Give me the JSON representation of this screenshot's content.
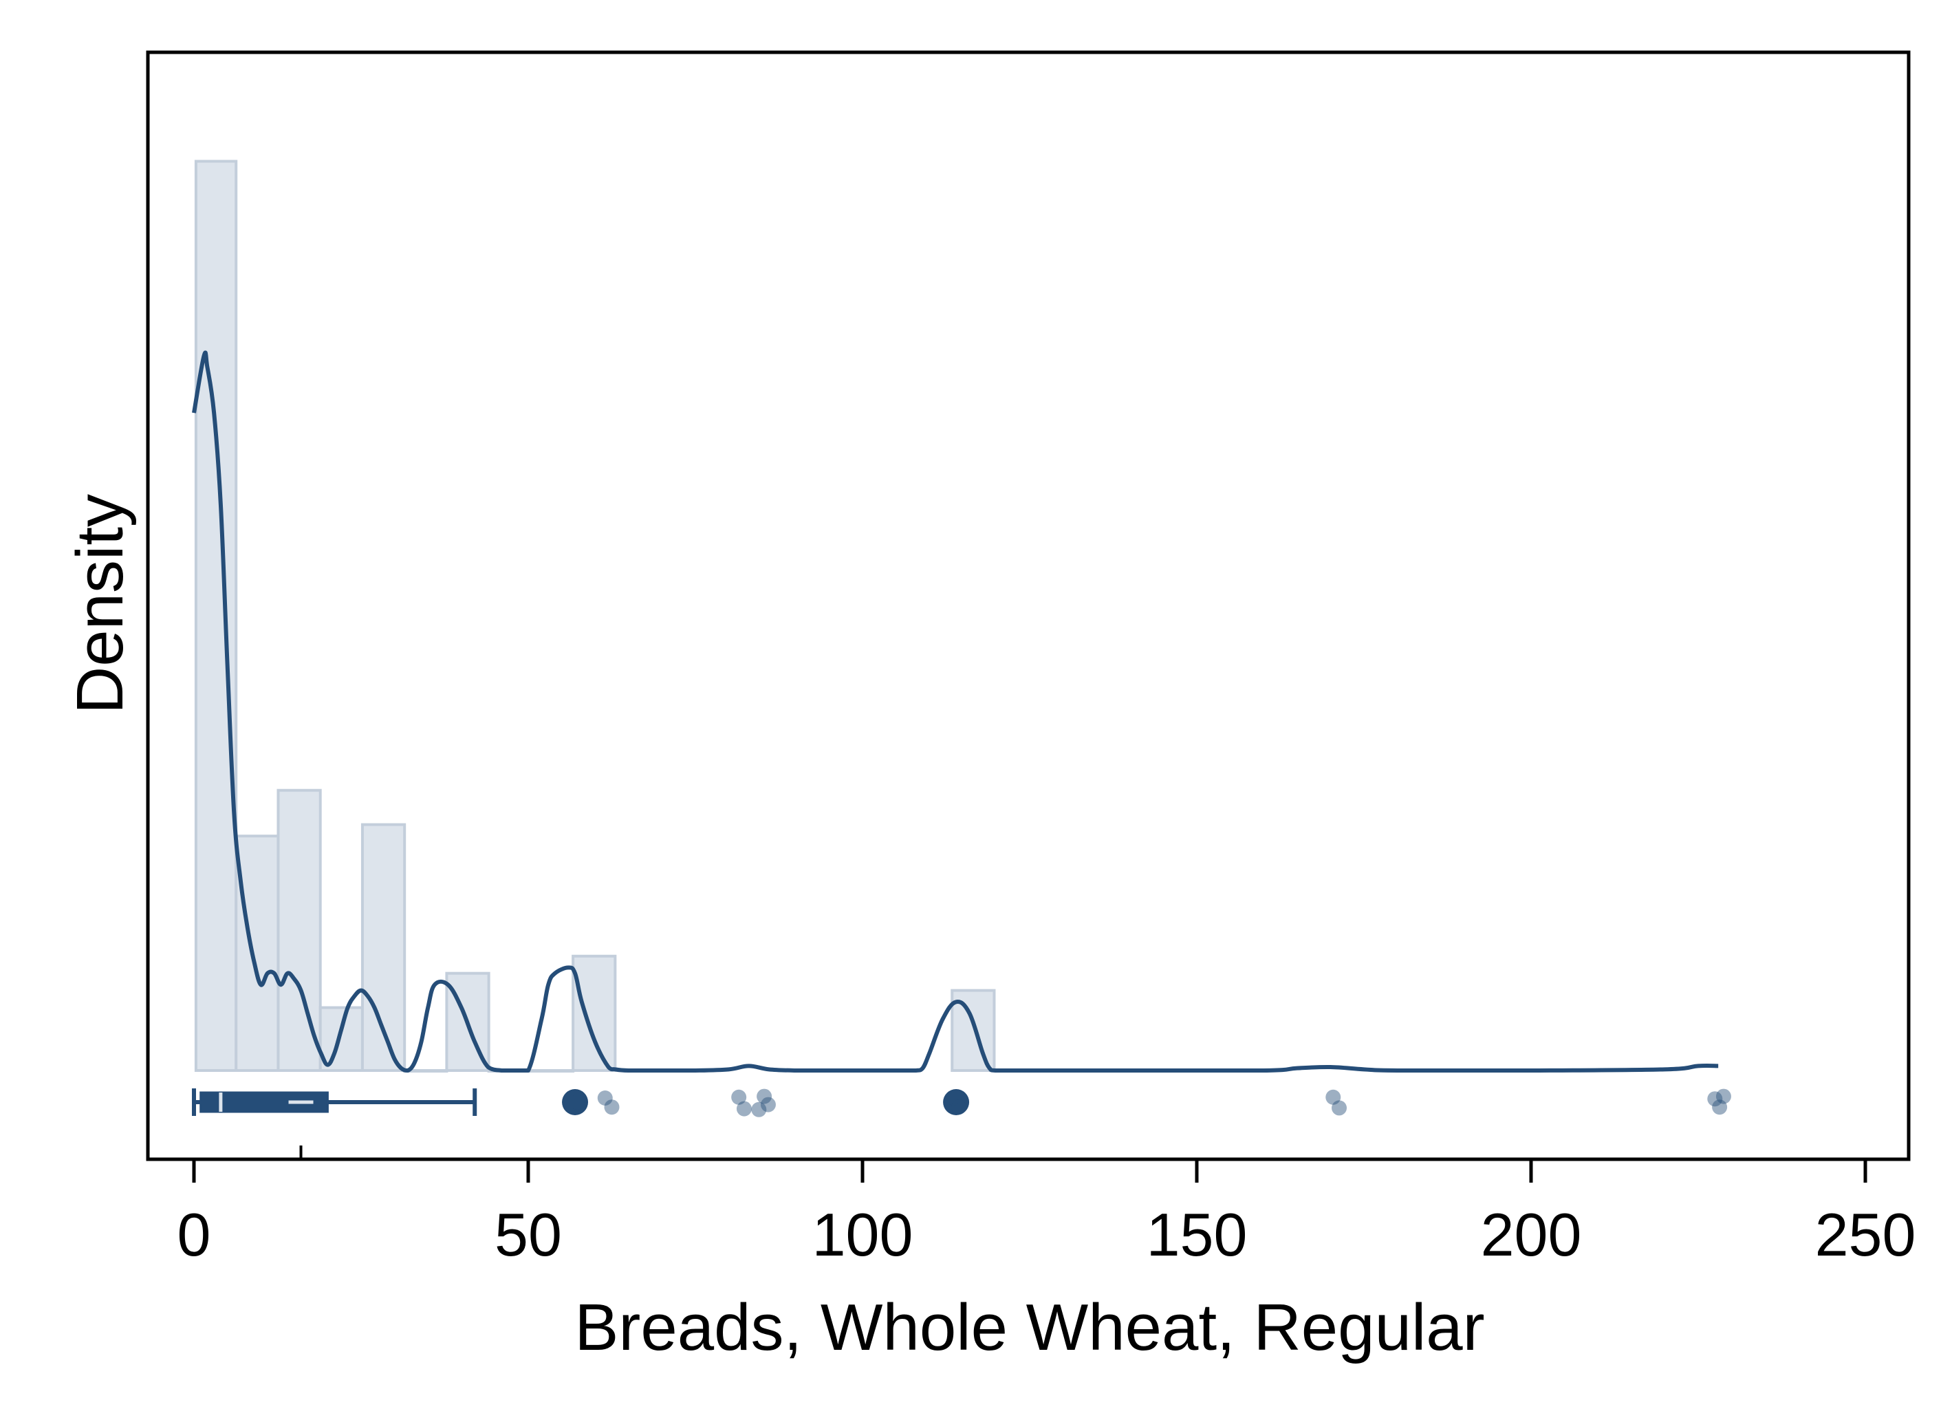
{
  "chart_data": {
    "type": "histogram",
    "title": "",
    "xlabel": "Breads, Whole Wheat, Regular",
    "ylabel": "Density",
    "xlim": [
      -7,
      257
    ],
    "xticks": [
      0,
      50,
      100,
      150,
      200,
      250
    ],
    "xtick_labels": [
      "0",
      "50",
      "100",
      "150",
      "200",
      "250"
    ],
    "yticks_shown": false,
    "density_max": 0.085,
    "grid": false,
    "legend": "none",
    "colors": {
      "bar_fill": "#dde4ec",
      "bar_edge": "#c3cedb",
      "line": "#254d78",
      "box": "#254d78",
      "median_mark": "#dde4ec",
      "frame": "#000000"
    },
    "bins": [
      {
        "x0": 0.3,
        "x1": 6.3,
        "density": 0.0795
      },
      {
        "x0": 6.3,
        "x1": 12.6,
        "density": 0.0205
      },
      {
        "x0": 12.6,
        "x1": 18.9,
        "density": 0.0245
      },
      {
        "x0": 18.9,
        "x1": 25.2,
        "density": 0.0055
      },
      {
        "x0": 25.2,
        "x1": 31.5,
        "density": 0.0215
      },
      {
        "x0": 31.5,
        "x1": 37.8,
        "density": 0.0
      },
      {
        "x0": 37.8,
        "x1": 44.1,
        "density": 0.0085
      },
      {
        "x0": 44.1,
        "x1": 50.4,
        "density": 0.0
      },
      {
        "x0": 50.4,
        "x1": 56.7,
        "density": 0.0
      },
      {
        "x0": 56.7,
        "x1": 63.0,
        "density": 0.01
      },
      {
        "x0": 113.4,
        "x1": 119.7,
        "density": 0.007
      }
    ],
    "kde": {
      "x": [
        0,
        1.5,
        2,
        3,
        4,
        5,
        6,
        7,
        8,
        9,
        10,
        11,
        12,
        13,
        14,
        15,
        16,
        17,
        18,
        19,
        20,
        21,
        22,
        23,
        24,
        25,
        26,
        27,
        28,
        29,
        30,
        31,
        32,
        33,
        34,
        35,
        36,
        38,
        40,
        42,
        44,
        46,
        47,
        48,
        50,
        52,
        53,
        54,
        56,
        57,
        58,
        60,
        62,
        63,
        65,
        70,
        75,
        80,
        83,
        86,
        90,
        95,
        100,
        105,
        108,
        109,
        110,
        112,
        114,
        116,
        118,
        119,
        120,
        125,
        140,
        160,
        165,
        170,
        175,
        180,
        200,
        220,
        225,
        228
      ],
      "y": [
        0.0575,
        0.0625,
        0.0615,
        0.0575,
        0.0495,
        0.0355,
        0.0225,
        0.0165,
        0.0125,
        0.0095,
        0.0075,
        0.0085,
        0.0085,
        0.0075,
        0.0085,
        0.008,
        0.007,
        0.005,
        0.003,
        0.0015,
        0.0005,
        0.0015,
        0.0035,
        0.0055,
        0.0065,
        0.007,
        0.0065,
        0.0055,
        0.004,
        0.0025,
        0.001,
        0.0002,
        0.0,
        0.0007,
        0.0025,
        0.0055,
        0.0075,
        0.0075,
        0.0055,
        0.0025,
        0.0003,
        0.0,
        0.0,
        0.0,
        0.0,
        0.0045,
        0.0075,
        0.0085,
        0.009,
        0.0085,
        0.006,
        0.0025,
        0.0003,
        0.0001,
        0.0,
        0.0,
        0.0,
        0.0001,
        0.0004,
        0.0001,
        0.0,
        0.0,
        0.0,
        0.0,
        0.0,
        0.0002,
        0.0015,
        0.0045,
        0.006,
        0.005,
        0.0015,
        0.0002,
        0.0,
        0.0,
        0.0,
        0.0,
        0.0002,
        0.0003,
        0.0001,
        0.0,
        0.0,
        0.0001,
        0.0004,
        0.0004
      ]
    },
    "boxplot": {
      "whisker_low": 0,
      "q1": 1,
      "median": 4,
      "mean": 16,
      "q3": 20,
      "whisker_high": 42,
      "outliers": [
        57,
        114
      ]
    },
    "jitter_points": [
      {
        "x": 57.3,
        "dy": 0.0
      },
      {
        "x": 61.5,
        "dy": -0.5
      },
      {
        "x": 62.5,
        "dy": 0.6
      },
      {
        "x": 81.5,
        "dy": -0.6
      },
      {
        "x": 82.3,
        "dy": 0.8
      },
      {
        "x": 84.5,
        "dy": 0.9
      },
      {
        "x": 85.3,
        "dy": -0.7
      },
      {
        "x": 85.9,
        "dy": 0.3
      },
      {
        "x": 113.6,
        "dy": -0.5
      },
      {
        "x": 114.4,
        "dy": 0.6
      },
      {
        "x": 170.4,
        "dy": -0.6
      },
      {
        "x": 171.3,
        "dy": 0.7
      },
      {
        "x": 227.5,
        "dy": -0.4
      },
      {
        "x": 228.2,
        "dy": 0.6
      },
      {
        "x": 228.8,
        "dy": -0.7
      }
    ]
  }
}
